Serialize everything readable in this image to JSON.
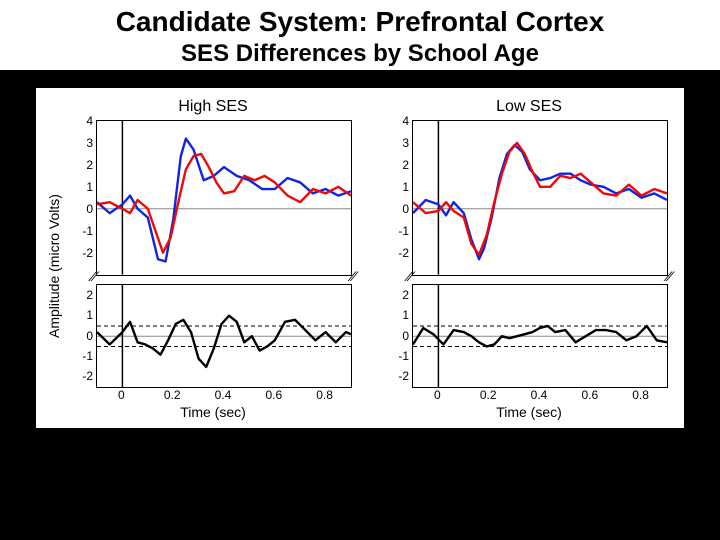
{
  "title_line1": "Candidate System: Prefrontal Cortex",
  "title_line2": "SES Differences by School Age",
  "ylabel": "Amplitude (micro Volts)",
  "xlabel": "Time (sec)",
  "colors": {
    "series_blue": "#1025e0",
    "series_red": "#ef0808",
    "series_diff": "#000000",
    "grid": "#888888",
    "axis": "#000000",
    "bg": "#ffffff"
  },
  "line_width": 2.4,
  "xlim": [
    -0.1,
    0.9
  ],
  "xticks": [
    0,
    0.2,
    0.4,
    0.6,
    0.8
  ],
  "top_ylim": [
    -3,
    4
  ],
  "top_yticks": [
    -2,
    -1,
    0,
    1,
    2,
    3,
    4
  ],
  "bot_ylim": [
    -2.5,
    2.5
  ],
  "bot_yticks": [
    -2,
    -1,
    0,
    1,
    2
  ],
  "bot_thresh": [
    0.5,
    -0.5
  ],
  "panels": [
    {
      "title": "High SES",
      "top": {
        "blue": [
          [
            -0.1,
            0.3
          ],
          [
            -0.05,
            -0.2
          ],
          [
            0.0,
            0.2
          ],
          [
            0.03,
            0.6
          ],
          [
            0.06,
            0.0
          ],
          [
            0.1,
            -0.4
          ],
          [
            0.14,
            -2.3
          ],
          [
            0.17,
            -2.4
          ],
          [
            0.2,
            -0.5
          ],
          [
            0.23,
            2.4
          ],
          [
            0.25,
            3.2
          ],
          [
            0.28,
            2.7
          ],
          [
            0.32,
            1.3
          ],
          [
            0.36,
            1.5
          ],
          [
            0.4,
            1.9
          ],
          [
            0.45,
            1.5
          ],
          [
            0.5,
            1.3
          ],
          [
            0.55,
            0.9
          ],
          [
            0.6,
            0.9
          ],
          [
            0.65,
            1.4
          ],
          [
            0.7,
            1.2
          ],
          [
            0.75,
            0.7
          ],
          [
            0.8,
            0.9
          ],
          [
            0.85,
            0.6
          ],
          [
            0.9,
            0.8
          ]
        ],
        "red": [
          [
            -0.1,
            0.2
          ],
          [
            -0.05,
            0.3
          ],
          [
            0.0,
            0.0
          ],
          [
            0.03,
            -0.2
          ],
          [
            0.06,
            0.4
          ],
          [
            0.1,
            0.0
          ],
          [
            0.13,
            -1.0
          ],
          [
            0.16,
            -2.0
          ],
          [
            0.19,
            -1.3
          ],
          [
            0.22,
            0.3
          ],
          [
            0.25,
            1.8
          ],
          [
            0.28,
            2.4
          ],
          [
            0.31,
            2.5
          ],
          [
            0.34,
            1.9
          ],
          [
            0.37,
            1.2
          ],
          [
            0.4,
            0.7
          ],
          [
            0.44,
            0.8
          ],
          [
            0.48,
            1.5
          ],
          [
            0.52,
            1.3
          ],
          [
            0.56,
            1.5
          ],
          [
            0.6,
            1.2
          ],
          [
            0.65,
            0.6
          ],
          [
            0.7,
            0.3
          ],
          [
            0.75,
            0.9
          ],
          [
            0.8,
            0.7
          ],
          [
            0.85,
            1.0
          ],
          [
            0.9,
            0.6
          ]
        ]
      },
      "bot": {
        "diff": [
          [
            -0.1,
            0.2
          ],
          [
            -0.05,
            -0.4
          ],
          [
            0.0,
            0.2
          ],
          [
            0.03,
            0.7
          ],
          [
            0.06,
            -0.3
          ],
          [
            0.09,
            -0.4
          ],
          [
            0.12,
            -0.6
          ],
          [
            0.15,
            -0.9
          ],
          [
            0.18,
            -0.2
          ],
          [
            0.21,
            0.6
          ],
          [
            0.24,
            0.8
          ],
          [
            0.27,
            0.2
          ],
          [
            0.3,
            -1.1
          ],
          [
            0.33,
            -1.5
          ],
          [
            0.36,
            -0.6
          ],
          [
            0.39,
            0.6
          ],
          [
            0.42,
            1.0
          ],
          [
            0.45,
            0.7
          ],
          [
            0.48,
            -0.3
          ],
          [
            0.51,
            0.0
          ],
          [
            0.54,
            -0.7
          ],
          [
            0.57,
            -0.5
          ],
          [
            0.6,
            -0.2
          ],
          [
            0.64,
            0.7
          ],
          [
            0.68,
            0.8
          ],
          [
            0.72,
            0.3
          ],
          [
            0.76,
            -0.2
          ],
          [
            0.8,
            0.2
          ],
          [
            0.84,
            -0.3
          ],
          [
            0.88,
            0.2
          ],
          [
            0.9,
            0.1
          ]
        ]
      }
    },
    {
      "title": "Low SES",
      "top": {
        "blue": [
          [
            -0.1,
            -0.2
          ],
          [
            -0.05,
            0.4
          ],
          [
            0.0,
            0.2
          ],
          [
            0.03,
            -0.3
          ],
          [
            0.06,
            0.3
          ],
          [
            0.1,
            -0.2
          ],
          [
            0.13,
            -1.4
          ],
          [
            0.16,
            -2.3
          ],
          [
            0.18,
            -1.8
          ],
          [
            0.21,
            -0.4
          ],
          [
            0.24,
            1.4
          ],
          [
            0.27,
            2.5
          ],
          [
            0.3,
            2.9
          ],
          [
            0.33,
            2.6
          ],
          [
            0.36,
            1.8
          ],
          [
            0.4,
            1.3
          ],
          [
            0.44,
            1.4
          ],
          [
            0.48,
            1.6
          ],
          [
            0.52,
            1.6
          ],
          [
            0.56,
            1.3
          ],
          [
            0.6,
            1.1
          ],
          [
            0.65,
            1.0
          ],
          [
            0.7,
            0.7
          ],
          [
            0.75,
            0.9
          ],
          [
            0.8,
            0.5
          ],
          [
            0.85,
            0.7
          ],
          [
            0.9,
            0.4
          ]
        ],
        "red": [
          [
            -0.1,
            0.3
          ],
          [
            -0.05,
            -0.2
          ],
          [
            0.0,
            -0.1
          ],
          [
            0.03,
            0.3
          ],
          [
            0.06,
            -0.1
          ],
          [
            0.1,
            -0.4
          ],
          [
            0.13,
            -1.6
          ],
          [
            0.16,
            -2.1
          ],
          [
            0.19,
            -1.2
          ],
          [
            0.22,
            0.3
          ],
          [
            0.25,
            1.6
          ],
          [
            0.28,
            2.6
          ],
          [
            0.31,
            3.0
          ],
          [
            0.34,
            2.5
          ],
          [
            0.37,
            1.7
          ],
          [
            0.4,
            1.0
          ],
          [
            0.44,
            1.0
          ],
          [
            0.48,
            1.5
          ],
          [
            0.52,
            1.4
          ],
          [
            0.56,
            1.6
          ],
          [
            0.6,
            1.2
          ],
          [
            0.65,
            0.7
          ],
          [
            0.7,
            0.6
          ],
          [
            0.75,
            1.1
          ],
          [
            0.8,
            0.6
          ],
          [
            0.85,
            0.9
          ],
          [
            0.9,
            0.7
          ]
        ]
      },
      "bot": {
        "diff": [
          [
            -0.1,
            -0.4
          ],
          [
            -0.06,
            0.4
          ],
          [
            -0.02,
            0.1
          ],
          [
            0.02,
            -0.4
          ],
          [
            0.06,
            0.3
          ],
          [
            0.1,
            0.2
          ],
          [
            0.13,
            0.0
          ],
          [
            0.16,
            -0.3
          ],
          [
            0.19,
            -0.5
          ],
          [
            0.22,
            -0.4
          ],
          [
            0.25,
            0.0
          ],
          [
            0.28,
            -0.1
          ],
          [
            0.31,
            0.0
          ],
          [
            0.34,
            0.1
          ],
          [
            0.37,
            0.2
          ],
          [
            0.4,
            0.4
          ],
          [
            0.43,
            0.5
          ],
          [
            0.46,
            0.2
          ],
          [
            0.5,
            0.3
          ],
          [
            0.54,
            -0.3
          ],
          [
            0.58,
            0.0
          ],
          [
            0.62,
            0.3
          ],
          [
            0.66,
            0.3
          ],
          [
            0.7,
            0.2
          ],
          [
            0.74,
            -0.2
          ],
          [
            0.78,
            0.0
          ],
          [
            0.82,
            0.5
          ],
          [
            0.86,
            -0.2
          ],
          [
            0.9,
            -0.3
          ]
        ]
      }
    }
  ]
}
